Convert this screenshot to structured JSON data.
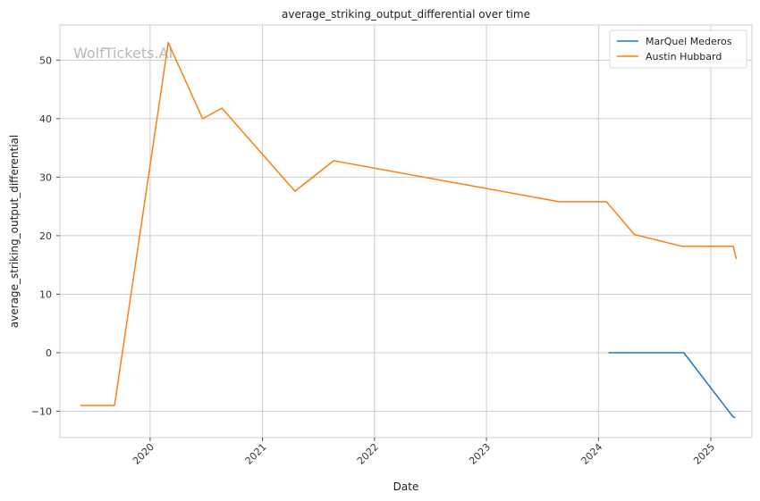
{
  "chart_data": {
    "type": "line",
    "title": "average_striking_output_differential over time",
    "xlabel": "Date",
    "ylabel": "average_striking_output_differential",
    "watermark": "WolfTickets.AI",
    "grid": true,
    "legend_position": "top-right",
    "xlim": [
      "2019-03-13",
      "2025-05-15"
    ],
    "ylim": [
      -14.5,
      56
    ],
    "x_ticks": [
      "2020-01-01",
      "2021-01-01",
      "2022-01-01",
      "2023-01-01",
      "2024-01-01",
      "2025-01-01"
    ],
    "x_tick_labels": [
      "2020",
      "2021",
      "2022",
      "2023",
      "2024",
      "2025"
    ],
    "y_ticks": [
      -10,
      0,
      10,
      20,
      30,
      40,
      50
    ],
    "y_tick_labels": [
      "−10",
      "0",
      "10",
      "20",
      "30",
      "40",
      "50"
    ],
    "series": [
      {
        "name": "MarQuel Mederos",
        "color": "#1f77b4",
        "points": [
          {
            "x": "2024-02-03",
            "y": 0
          },
          {
            "x": "2024-10-05",
            "y": 0
          },
          {
            "x": "2025-03-15",
            "y": -11
          },
          {
            "x": "2025-03-22",
            "y": -11
          }
        ]
      },
      {
        "name": "Austin Hubbard",
        "color": "#ff7f0e",
        "points": [
          {
            "x": "2019-05-18",
            "y": -9
          },
          {
            "x": "2019-09-07",
            "y": -9
          },
          {
            "x": "2020-02-29",
            "y": 53
          },
          {
            "x": "2020-06-20",
            "y": 40
          },
          {
            "x": "2020-08-22",
            "y": 41.8
          },
          {
            "x": "2021-04-17",
            "y": 27.6
          },
          {
            "x": "2021-08-21",
            "y": 32.8
          },
          {
            "x": "2023-08-26",
            "y": 25.8
          },
          {
            "x": "2024-01-27",
            "y": 25.8
          },
          {
            "x": "2024-04-27",
            "y": 20.2
          },
          {
            "x": "2024-09-28",
            "y": 18.2
          },
          {
            "x": "2025-03-15",
            "y": 18.2
          },
          {
            "x": "2025-03-25",
            "y": 16
          }
        ]
      }
    ]
  }
}
